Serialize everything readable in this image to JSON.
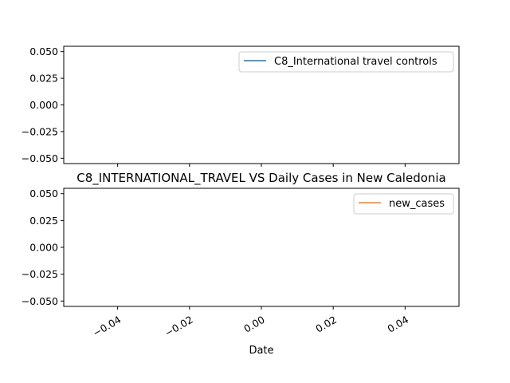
{
  "chart_data": [
    {
      "type": "line",
      "title": "",
      "xlabel": "",
      "ylabel": "",
      "series": [
        {
          "name": "C8_International travel controls",
          "color": "#1f77b4",
          "x": [],
          "y": []
        }
      ],
      "ylim": [
        -0.055,
        0.055
      ],
      "yticks": [
        0.05,
        0.025,
        0.0,
        -0.025,
        -0.05
      ],
      "ytick_labels": [
        "0.050",
        "0.025",
        "0.000",
        "−0.025",
        "−0.050"
      ],
      "xlim": [
        -0.055,
        0.055
      ],
      "xticks": [
        -0.04,
        -0.02,
        0.0,
        0.02,
        0.04
      ],
      "xtick_labels": [],
      "legend": "top-right",
      "grid": false
    },
    {
      "type": "line",
      "title": "C8_INTERNATIONAL_TRAVEL VS Daily Cases in New Caledonia",
      "xlabel": "Date",
      "ylabel": "",
      "series": [
        {
          "name": "new_cases",
          "color": "#ff7f0e",
          "x": [],
          "y": []
        }
      ],
      "ylim": [
        -0.055,
        0.055
      ],
      "yticks": [
        0.05,
        0.025,
        0.0,
        -0.025,
        -0.05
      ],
      "ytick_labels": [
        "0.050",
        "0.025",
        "0.000",
        "−0.025",
        "−0.050"
      ],
      "xlim": [
        -0.055,
        0.055
      ],
      "xticks": [
        -0.04,
        -0.02,
        0.0,
        0.02,
        0.04
      ],
      "xtick_labels": [
        "−0.04",
        "−0.02",
        "0.00",
        "0.02",
        "0.04"
      ],
      "legend": "top-right",
      "grid": false
    }
  ]
}
